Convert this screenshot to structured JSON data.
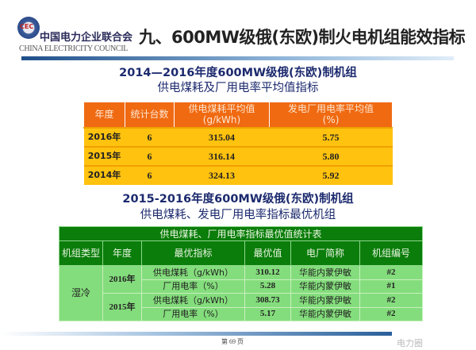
{
  "header": {
    "logo_text": "CEC",
    "org_cn": "中国电力企业联合会",
    "org_en": "CHINA ELECTRICITY COUNCIL",
    "title": "九、600MW级俄(东欧)制火电机组能效指标"
  },
  "section1": {
    "title_line1": "2014—2016年度600MW级俄(东欧)制机组",
    "title_line2": "供电煤耗及厂用电率平均值指标",
    "headers": [
      "年度",
      "统计台数",
      "供电煤耗平均值",
      "发电厂用电率平均值"
    ],
    "header_units": [
      "",
      "",
      "(g/kWh)",
      "(%)"
    ],
    "rows": [
      [
        "2016年",
        "6",
        "315.04",
        "5.75"
      ],
      [
        "2015年",
        "6",
        "316.14",
        "5.80"
      ],
      [
        "2014年",
        "6",
        "324.13",
        "5.92"
      ]
    ]
  },
  "section2": {
    "title_line1": "2015-2016年度600MW级俄(东欧)制机组",
    "title_line2": "供电煤耗、发电厂用电率指标最优机组",
    "caption": "供电煤耗、厂用电率指标最优值统计表",
    "headers": [
      "机组类型",
      "年度",
      "最优指标",
      "最优值",
      "电厂简称",
      "机组编号"
    ],
    "unit_type": "湿冷",
    "groups": [
      {
        "year": "2016年",
        "rows": [
          [
            "供电煤耗（g/kWh）",
            "310.12",
            "华能内蒙伊敏",
            "#2"
          ],
          [
            "厂用电率（%）",
            "5.28",
            "华能内蒙伊敏",
            "#1"
          ]
        ]
      },
      {
        "year": "2015年",
        "rows": [
          [
            "供电煤耗（g/kWh）",
            "308.73",
            "华能内蒙伊敏",
            "#2"
          ],
          [
            "厂用电率（%）",
            "5.17",
            "华能内蒙伊敏",
            "#2"
          ]
        ]
      }
    ]
  },
  "footer": {
    "page": "第 69 页",
    "watermark": "电力圈"
  }
}
